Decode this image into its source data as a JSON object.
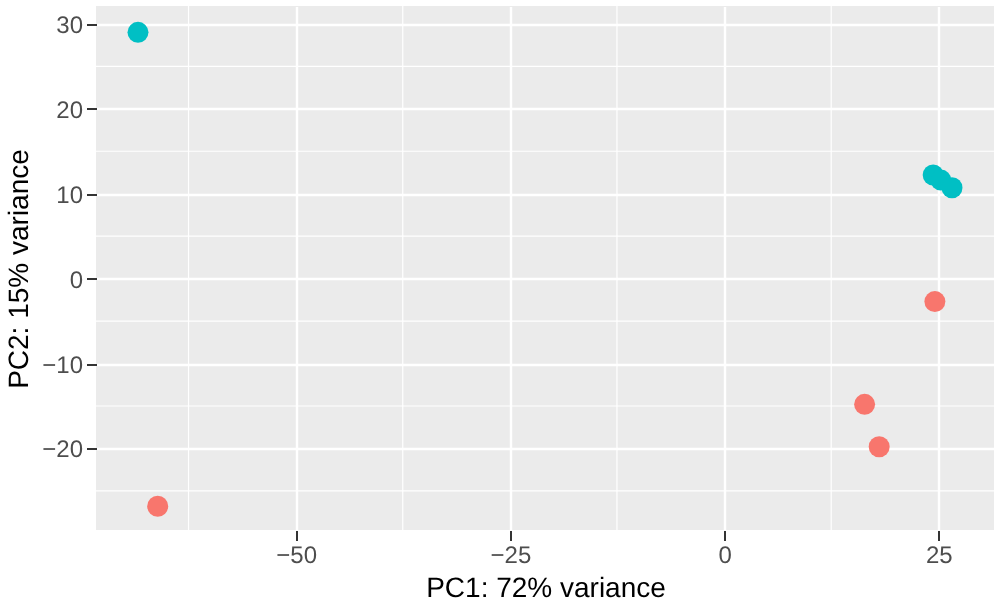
{
  "chart_data": {
    "type": "scatter",
    "xlabel": "PC1: 72% variance",
    "ylabel": "PC2: 15% variance",
    "series": [
      {
        "color": "#00bfc4",
        "x": [
          -68.4,
          24.4,
          25.3,
          26.6
        ],
        "values": [
          29.0,
          12.2,
          11.6,
          10.7
        ]
      },
      {
        "color": "#f8766d",
        "x": [
          -66.1,
          24.6,
          16.4,
          18.1
        ],
        "values": [
          -26.8,
          -2.7,
          -14.8,
          -19.8
        ]
      }
    ],
    "xlim": [
      -73.3,
      31.5
    ],
    "ylim": [
      -29.6,
      32.1
    ],
    "xticks": [
      -50,
      -25,
      0,
      25
    ],
    "yticks": [
      -20,
      -10,
      0,
      10,
      20,
      30
    ],
    "grid": true,
    "marker": "circle",
    "legend": false
  }
}
